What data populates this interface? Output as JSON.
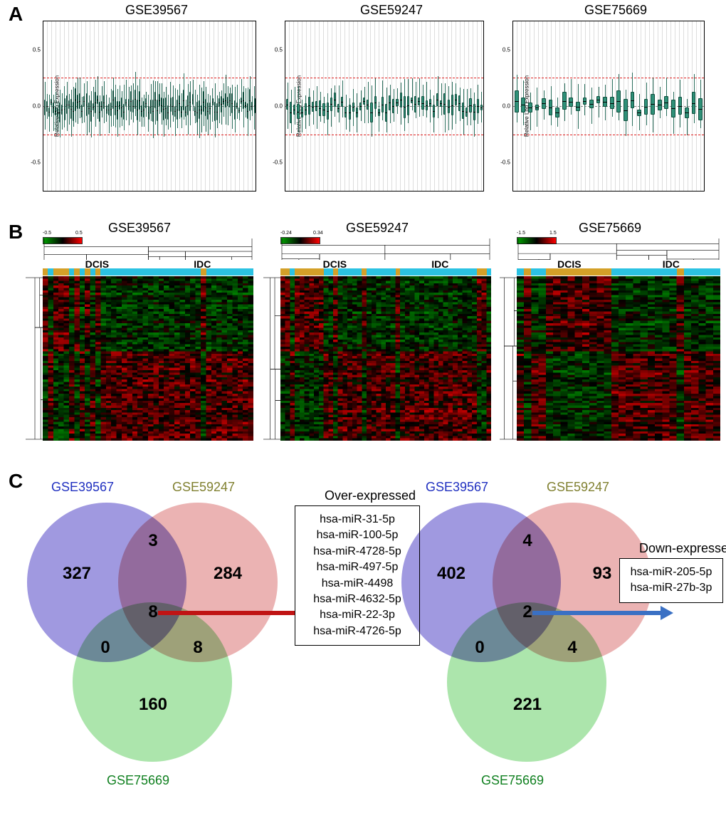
{
  "panel_labels": {
    "A": "A",
    "B": "B",
    "C": "C"
  },
  "datasets": [
    "GSE39567",
    "GSE59247",
    "GSE75669"
  ],
  "panelA": {
    "ylabel": "Relative Log Expression",
    "yticks": [
      -0.5,
      0.0,
      0.5
    ],
    "ylim": [
      -0.75,
      0.75
    ],
    "ref_lines": [
      -0.25,
      0.25
    ],
    "box_color": "#2f9078",
    "whisker_color": "#2a6e5c",
    "median_color": "#000000",
    "background_color": "#ffffff",
    "grid_color": "#dddddd",
    "ref_line_color": "#e02020",
    "plots": [
      {
        "title": "GSE39567",
        "n_samples": 96
      },
      {
        "title": "GSE59247",
        "n_samples": 54
      },
      {
        "title": "GSE75669",
        "n_samples": 28
      }
    ]
  },
  "panelB": {
    "colorscale": {
      "low": "#00a000",
      "mid": "#000000",
      "high": "#ff0000"
    },
    "group_colors": {
      "DCIS": "#d4a028",
      "IDC": "#2bc2e2"
    },
    "group_labels": {
      "left": "DCIS",
      "right": "IDC"
    },
    "plots": [
      {
        "title": "GSE39567",
        "scale": [
          -0.5,
          0.5
        ],
        "n_rows": 70,
        "n_cols": 40,
        "group_pattern": "DIDD DIDI DIDI IIII IIII IIII IIII IIDI IIII IIII"
      },
      {
        "title": "GSE59247",
        "scale": [
          -0.24,
          0.34
        ],
        "n_rows": 70,
        "n_cols": 44,
        "group_pattern": "DDID DDDD DIID IIII IDII IIII DIII IIII IIII IIII I"
      },
      {
        "title": "GSE75669",
        "scale": [
          -1.5,
          1.5
        ],
        "n_rows": 70,
        "n_cols": 28,
        "group_pattern": "IDII DDDD DDDD DIII IIII IIDI IIII"
      }
    ]
  },
  "panelC": {
    "circle_colors": {
      "A": "#8076d6",
      "B": "#e59a9a",
      "C": "#90dd90"
    },
    "circle_opacity": 0.75,
    "label_colors": {
      "A": "#2030c0",
      "B": "#808030",
      "C": "#108020"
    },
    "arrow_colors": {
      "over": "#c01414",
      "down": "#3a70c4"
    },
    "venns": [
      {
        "type": "over",
        "title": "Over-expressed",
        "labels": {
          "A": "GSE39567",
          "B": "GSE59247",
          "C": "GSE75669"
        },
        "counts": {
          "A": 327,
          "B": 284,
          "C": 160,
          "AB": 3,
          "AC": 0,
          "BC": 8,
          "ABC": 8
        },
        "items": [
          "hsa-miR-31-5p",
          "hsa-miR-100-5p",
          "hsa-miR-4728-5p",
          "hsa-miR-497-5p",
          "hsa-miR-4498",
          "hsa-miR-4632-5p",
          "hsa-miR-22-3p",
          "hsa-miR-4726-5p"
        ]
      },
      {
        "type": "down",
        "title": "Down-expressed",
        "labels": {
          "A": "GSE39567",
          "B": "GSE59247",
          "C": "GSE75669"
        },
        "counts": {
          "A": 402,
          "B": 93,
          "C": 221,
          "AB": 4,
          "AC": 0,
          "BC": 4,
          "ABC": 2
        },
        "items": [
          "hsa-miR-205-5p",
          "hsa-miR-27b-3p"
        ]
      }
    ]
  }
}
